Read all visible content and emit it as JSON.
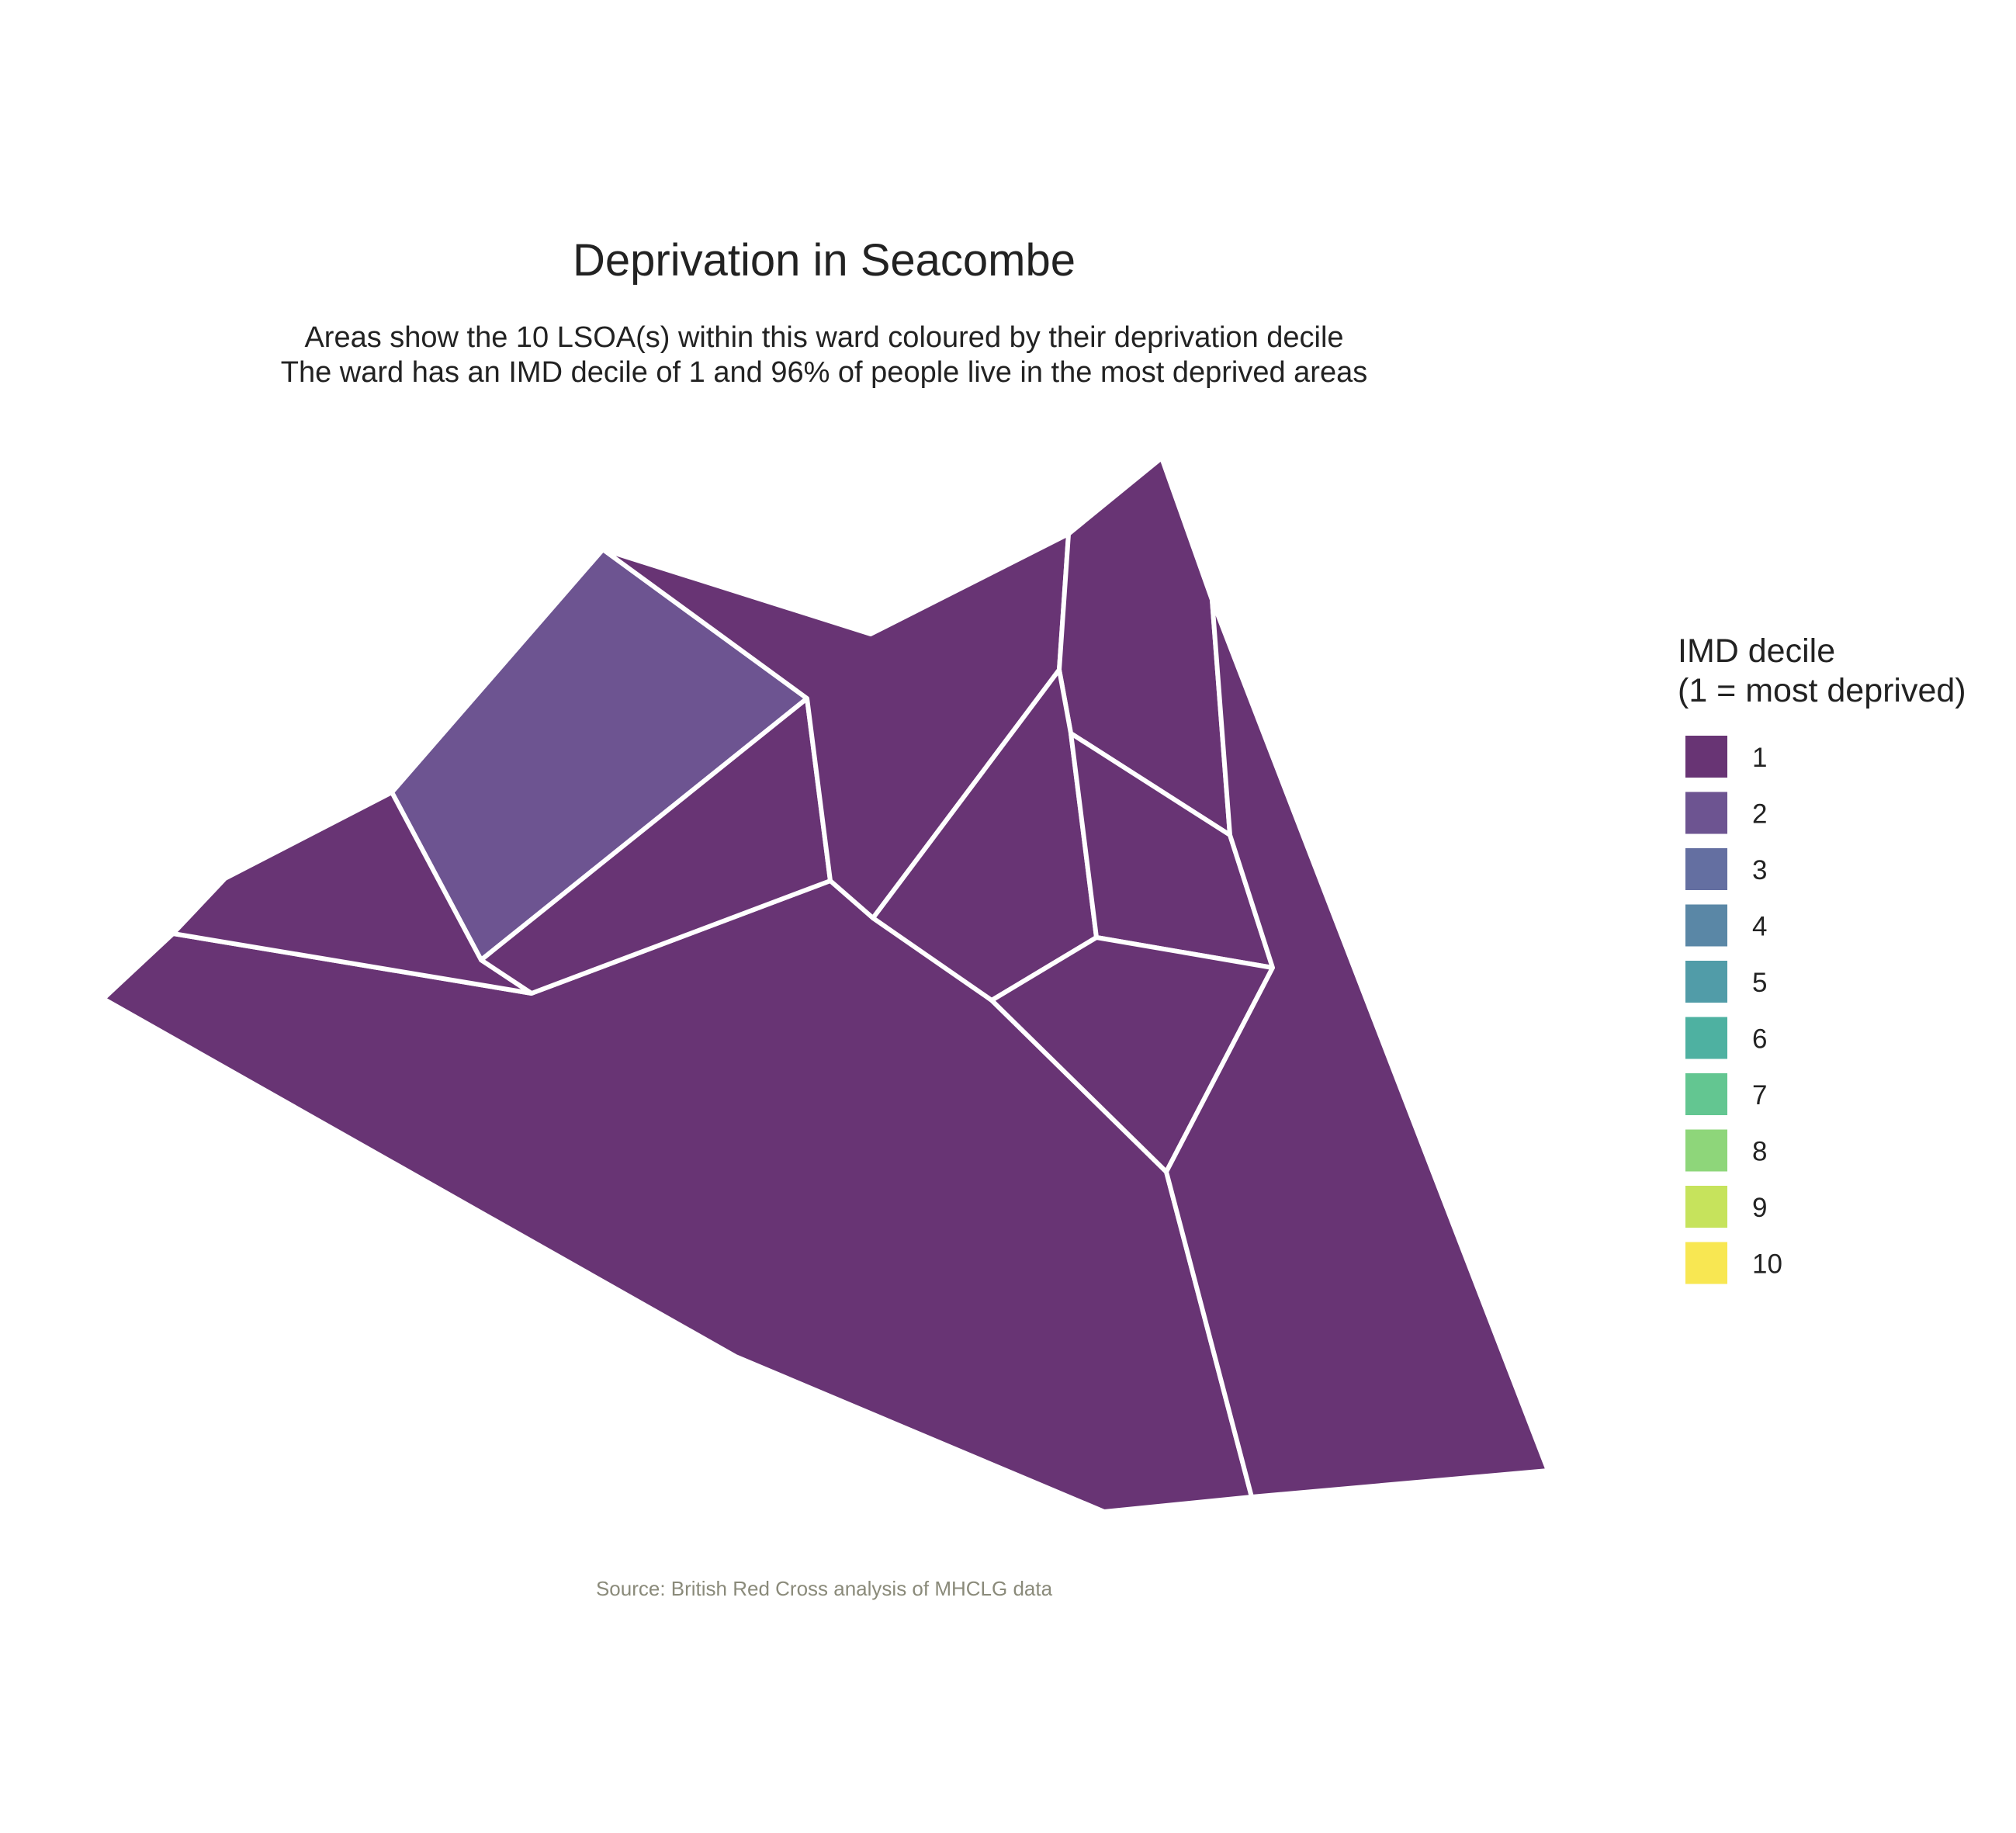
{
  "title": "Deprivation in Seacombe",
  "subtitle_lines": [
    "Areas show the 10 LSOA(s) within this ward coloured by their deprivation decile",
    "The ward has an IMD decile of 1 and 96% of people live in the most deprived areas"
  ],
  "caption": "Source: British Red Cross analysis of MHCLG data",
  "legend": {
    "title_lines": [
      "IMD decile",
      "(1 = most deprived)"
    ],
    "items": [
      {
        "label": "1",
        "color": "#683474"
      },
      {
        "label": "2",
        "color": "#6D5491"
      },
      {
        "label": "3",
        "color": "#646FA1"
      },
      {
        "label": "4",
        "color": "#5A87A6"
      },
      {
        "label": "5",
        "color": "#519CA8"
      },
      {
        "label": "6",
        "color": "#4EB1A1"
      },
      {
        "label": "7",
        "color": "#63C691"
      },
      {
        "label": "8",
        "color": "#8ED67A"
      },
      {
        "label": "9",
        "color": "#C6E35C"
      },
      {
        "label": "10",
        "color": "#F8E752"
      }
    ]
  },
  "chart_data": {
    "type": "choropleth",
    "variable": "IMD decile",
    "areas": [
      {
        "id": "lsoa-01",
        "decile": 1
      },
      {
        "id": "lsoa-02",
        "decile": 2
      },
      {
        "id": "lsoa-03",
        "decile": 1
      },
      {
        "id": "lsoa-04",
        "decile": 1
      },
      {
        "id": "lsoa-05",
        "decile": 1
      },
      {
        "id": "lsoa-06",
        "decile": 1
      },
      {
        "id": "lsoa-07",
        "decile": 1
      },
      {
        "id": "lsoa-08",
        "decile": 1
      },
      {
        "id": "lsoa-09",
        "decile": 1
      },
      {
        "id": "lsoa-10",
        "decile": 1
      }
    ]
  }
}
